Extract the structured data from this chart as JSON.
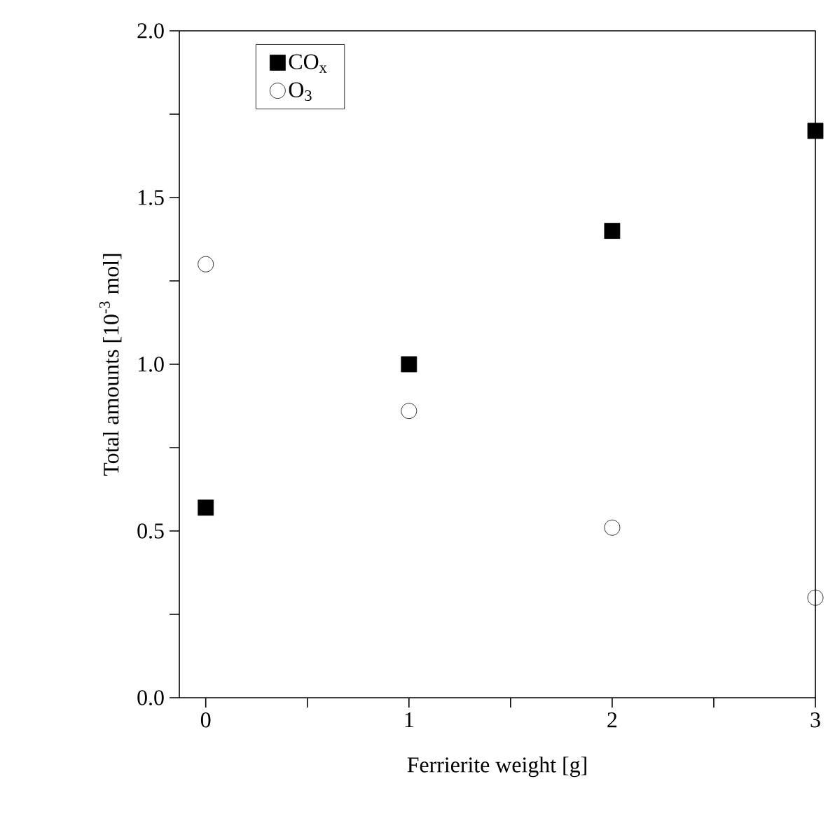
{
  "chart_data": {
    "type": "scatter",
    "xlabel": "Ferrierite weight [g]",
    "ylabel": "Total amounts [10$^{-3}$ mol]",
    "x": [
      0,
      1,
      2,
      3
    ],
    "series": [
      {
        "name": "CO$_{x}$",
        "color": "#000000",
        "marker": "square",
        "values": [
          0.57,
          1.0,
          1.4,
          1.7
        ]
      },
      {
        "name": "O$_{3}$",
        "color": "#000000",
        "marker": "circle",
        "values": [
          1.3,
          0.86,
          0.51,
          0.3
        ]
      }
    ],
    "xlim": [
      -0.13,
      3.0
    ],
    "ylim": [
      0,
      2.0
    ],
    "xticks": [
      0,
      {
        "value": 0.5,
        "label": null
      },
      1,
      {
        "value": 1.5,
        "label": null
      },
      2,
      {
        "value": 2.5,
        "label": null
      },
      3
    ],
    "yticks": [
      {
        "value": 0,
        "label": "0.0"
      },
      {
        "value": 0.25,
        "label": null
      },
      {
        "value": 0.5,
        "label": "0.5"
      },
      {
        "value": 0.75,
        "label": null
      },
      {
        "value": 1.0,
        "label": "1.0"
      },
      {
        "value": 1.25,
        "label": null
      },
      {
        "value": 1.5,
        "label": "1.5"
      },
      {
        "value": 1.75,
        "label": null
      },
      {
        "value": 2.0,
        "label": "2.0"
      }
    ],
    "legend": "top left",
    "grid": false
  }
}
